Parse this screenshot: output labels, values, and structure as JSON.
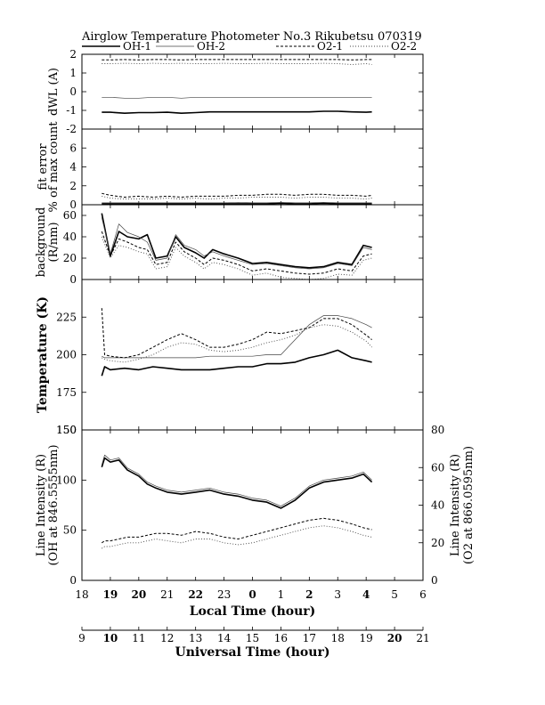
{
  "title": "Airglow Temperature Photometer No.3   Rikubetsu   070319",
  "legend": [
    {
      "name": "OH-1",
      "style": "solid-thick"
    },
    {
      "name": "OH-2",
      "style": "solid-thin"
    },
    {
      "name": "O2-1",
      "style": "dashed"
    },
    {
      "name": "O2-2",
      "style": "dotted"
    }
  ],
  "x_local": {
    "label": "Local Time (hour)",
    "ticks": [
      "18",
      "19",
      "20",
      "21",
      "22",
      "23",
      "0",
      "1",
      "2",
      "3",
      "4",
      "5",
      "6"
    ],
    "bold": [
      "19",
      "20",
      "22",
      "0",
      "2",
      "4"
    ]
  },
  "x_ut": {
    "label": "Universal Time (hour)",
    "ticks": [
      "9",
      "10",
      "11",
      "12",
      "13",
      "14",
      "15",
      "16",
      "17",
      "18",
      "19",
      "20",
      "21"
    ],
    "bold": [
      "10",
      "20"
    ]
  },
  "chart_data": [
    {
      "type": "line",
      "ylabel": "dWL (A)",
      "ylim": [
        -2,
        2
      ],
      "yticks": [
        "-2",
        "-1",
        "0",
        "1",
        "2"
      ],
      "x": [
        18.7,
        19.0,
        19.5,
        20.0,
        20.5,
        21.0,
        21.5,
        22.0,
        22.5,
        23.0,
        23.5,
        24.0,
        24.5,
        25.0,
        25.5,
        26.0,
        26.5,
        27.0,
        27.5,
        28.0,
        28.2
      ],
      "series": [
        {
          "name": "OH-1",
          "values": [
            -1.1,
            -1.1,
            -1.15,
            -1.12,
            -1.12,
            -1.1,
            -1.15,
            -1.12,
            -1.08,
            -1.08,
            -1.08,
            -1.08,
            -1.08,
            -1.08,
            -1.08,
            -1.08,
            -1.05,
            -1.05,
            -1.08,
            -1.1,
            -1.08
          ]
        },
        {
          "name": "OH-2",
          "values": [
            -0.3,
            -0.3,
            -0.35,
            -0.35,
            -0.3,
            -0.3,
            -0.35,
            -0.3,
            -0.3,
            -0.3,
            -0.3,
            -0.3,
            -0.3,
            -0.3,
            -0.3,
            -0.3,
            -0.3,
            -0.3,
            -0.3,
            -0.3,
            -0.3
          ]
        },
        {
          "name": "O2-1",
          "values": [
            1.7,
            1.7,
            1.72,
            1.7,
            1.72,
            1.72,
            1.7,
            1.72,
            1.72,
            1.72,
            1.72,
            1.72,
            1.72,
            1.72,
            1.72,
            1.72,
            1.72,
            1.72,
            1.7,
            1.72,
            1.72
          ]
        },
        {
          "name": "O2-2",
          "values": [
            1.5,
            1.5,
            1.52,
            1.5,
            1.52,
            1.5,
            1.52,
            1.5,
            1.5,
            1.52,
            1.5,
            1.5,
            1.52,
            1.5,
            1.5,
            1.5,
            1.52,
            1.5,
            1.45,
            1.5,
            1.45
          ]
        }
      ]
    },
    {
      "type": "line",
      "ylabel": "fit error",
      "ylabel2": "% of max count",
      "ylim": [
        0,
        8
      ],
      "yticks": [
        "0",
        "2",
        "4",
        "6"
      ],
      "x": [
        18.7,
        19.0,
        19.5,
        20.0,
        20.5,
        21.0,
        21.5,
        22.0,
        22.5,
        23.0,
        23.5,
        24.0,
        24.5,
        25.0,
        25.5,
        26.0,
        26.5,
        27.0,
        27.5,
        28.0,
        28.2
      ],
      "series": [
        {
          "name": "OH-1",
          "values": [
            0.1,
            0.1,
            0.1,
            0.1,
            0.1,
            0.1,
            0.1,
            0.1,
            0.1,
            0.1,
            0.1,
            0.1,
            0.1,
            0.15,
            0.1,
            0.1,
            0.15,
            0.1,
            0.1,
            0.1,
            0.1
          ]
        },
        {
          "name": "OH-2",
          "values": [
            0.2,
            0.2,
            0.2,
            0.2,
            0.2,
            0.2,
            0.2,
            0.2,
            0.2,
            0.2,
            0.25,
            0.2,
            0.2,
            0.25,
            0.2,
            0.2,
            0.25,
            0.2,
            0.2,
            0.2,
            0.2
          ]
        },
        {
          "name": "O2-1",
          "values": [
            1.2,
            1.0,
            0.8,
            0.9,
            0.8,
            0.9,
            0.8,
            0.9,
            0.9,
            0.9,
            1.0,
            1.0,
            1.1,
            1.1,
            1.0,
            1.1,
            1.1,
            1.0,
            1.0,
            0.9,
            1.0
          ]
        },
        {
          "name": "O2-2",
          "values": [
            0.9,
            0.7,
            0.6,
            0.6,
            0.6,
            0.7,
            0.6,
            0.7,
            0.6,
            0.7,
            0.7,
            0.8,
            0.8,
            0.8,
            0.7,
            0.8,
            0.8,
            0.7,
            0.7,
            0.6,
            0.7
          ]
        }
      ]
    },
    {
      "type": "line",
      "ylabel": "background",
      "ylabel2": "(R/nm)",
      "ylim": [
        0,
        70
      ],
      "yticks": [
        "0",
        "20",
        "40",
        "60"
      ],
      "x": [
        18.7,
        19.0,
        19.3,
        19.6,
        20.0,
        20.3,
        20.6,
        21.0,
        21.3,
        21.6,
        22.0,
        22.3,
        22.6,
        23.0,
        23.5,
        24.0,
        24.5,
        25.0,
        25.5,
        26.0,
        26.5,
        27.0,
        27.5,
        27.9,
        28.2
      ],
      "series": [
        {
          "name": "OH-1",
          "values": [
            62,
            22,
            45,
            40,
            38,
            42,
            20,
            22,
            40,
            30,
            25,
            20,
            28,
            24,
            20,
            15,
            16,
            14,
            12,
            11,
            12,
            16,
            14,
            32,
            30
          ]
        },
        {
          "name": "OH-2",
          "values": [
            58,
            24,
            52,
            44,
            40,
            35,
            18,
            20,
            42,
            32,
            28,
            22,
            26,
            22,
            18,
            14,
            15,
            13,
            11,
            10,
            11,
            15,
            13,
            30,
            28
          ]
        },
        {
          "name": "O2-1",
          "values": [
            45,
            22,
            38,
            35,
            30,
            28,
            14,
            16,
            35,
            26,
            20,
            14,
            20,
            18,
            14,
            8,
            10,
            8,
            6,
            5,
            6,
            10,
            8,
            22,
            24
          ]
        },
        {
          "name": "O2-2",
          "values": [
            40,
            20,
            32,
            30,
            26,
            24,
            10,
            12,
            30,
            22,
            16,
            10,
            16,
            14,
            10,
            4,
            6,
            2,
            1,
            0,
            1,
            5,
            4,
            18,
            20
          ]
        }
      ]
    },
    {
      "type": "line",
      "ylabel": "Temperature (K)",
      "ylim": [
        150,
        250
      ],
      "yticks": [
        "150",
        "175",
        "200",
        "225"
      ],
      "x": [
        18.7,
        18.8,
        19.0,
        19.5,
        20.0,
        20.5,
        21.0,
        21.5,
        22.0,
        22.5,
        23.0,
        23.5,
        24.0,
        24.5,
        25.0,
        25.5,
        26.0,
        26.5,
        27.0,
        27.5,
        28.0,
        28.2
      ],
      "series": [
        {
          "name": "OH-1",
          "values": [
            186,
            192,
            190,
            191,
            190,
            192,
            191,
            190,
            190,
            190,
            191,
            192,
            192,
            194,
            194,
            195,
            198,
            200,
            203,
            198,
            196,
            195
          ]
        },
        {
          "name": "OH-2",
          "values": [
            199,
            198,
            198,
            198,
            198,
            198,
            198,
            198,
            198,
            199,
            199,
            199,
            199,
            200,
            200,
            210,
            220,
            226,
            226,
            224,
            220,
            218
          ]
        },
        {
          "name": "O2-1",
          "values": [
            231,
            200,
            199,
            198,
            200,
            205,
            210,
            214,
            210,
            205,
            205,
            207,
            210,
            215,
            214,
            216,
            218,
            224,
            224,
            220,
            213,
            210
          ]
        },
        {
          "name": "O2-2",
          "values": [
            198,
            197,
            196,
            195,
            197,
            200,
            205,
            208,
            207,
            203,
            202,
            203,
            205,
            208,
            210,
            213,
            218,
            220,
            219,
            215,
            209,
            205
          ]
        }
      ]
    },
    {
      "type": "line",
      "ylabel": "Line Intensity (R)",
      "ylabel2": "(OH at 846.5555nm)",
      "ylabel_right": "Line Intensity (R)",
      "ylabel_right2": "(O2 at 866.0595nm)",
      "ylim": [
        0,
        150
      ],
      "ylim_right": [
        0,
        80
      ],
      "yticks": [
        "0",
        "50",
        "100",
        "150"
      ],
      "yticks_right": [
        "0",
        "20",
        "40",
        "60",
        "80"
      ],
      "x": [
        18.7,
        18.8,
        19.0,
        19.3,
        19.6,
        20.0,
        20.3,
        20.6,
        21.0,
        21.5,
        22.0,
        22.5,
        23.0,
        23.5,
        24.0,
        24.5,
        25.0,
        25.5,
        26.0,
        26.5,
        27.0,
        27.5,
        27.9,
        28.2
      ],
      "series": [
        {
          "name": "OH-1",
          "values": [
            113,
            122,
            118,
            120,
            110,
            104,
            96,
            92,
            88,
            86,
            88,
            90,
            86,
            84,
            80,
            78,
            72,
            80,
            92,
            98,
            100,
            102,
            106,
            98
          ]
        },
        {
          "name": "OH-2",
          "values": [
            115,
            125,
            120,
            122,
            112,
            106,
            98,
            94,
            90,
            88,
            90,
            92,
            88,
            86,
            82,
            80,
            74,
            82,
            94,
            100,
            102,
            104,
            108,
            100
          ]
        },
        {
          "name": "O2-1",
          "values": [
            20,
            21,
            21,
            22,
            23,
            23,
            24,
            25,
            25,
            24,
            26,
            25,
            23,
            22,
            24,
            26,
            28,
            30,
            32,
            33,
            32,
            30,
            28,
            27
          ]
        },
        {
          "name": "O2-2",
          "values": [
            17,
            18,
            18,
            19,
            20,
            20,
            21,
            22,
            21,
            20,
            22,
            22,
            20,
            19,
            20,
            22,
            24,
            26,
            28,
            29,
            28,
            26,
            24,
            23
          ]
        }
      ]
    }
  ]
}
